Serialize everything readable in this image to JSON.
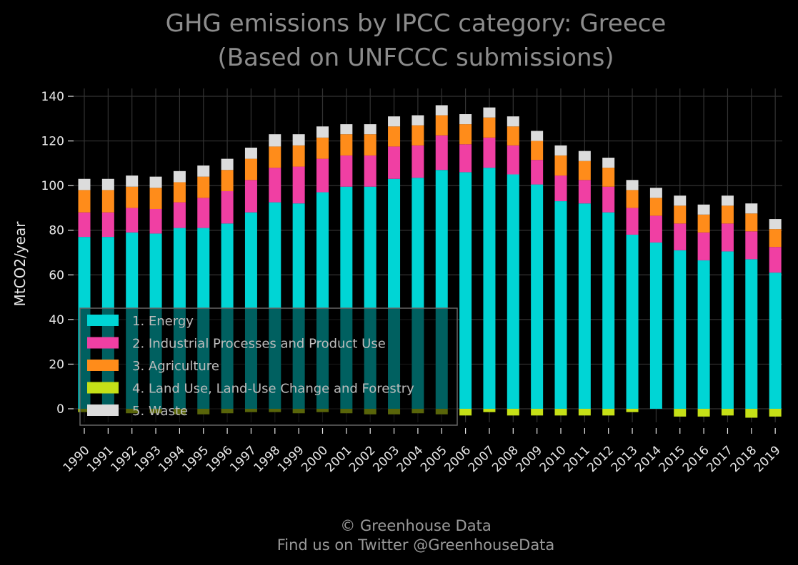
{
  "chart_data": {
    "type": "bar",
    "stacked": true,
    "title": "GHG emissions by IPCC category: Greece",
    "subtitle": "(Based on UNFCCC submissions)",
    "ylabel": "MtCO2/year",
    "xlabel": "",
    "ylim": [
      -5,
      143
    ],
    "yticks": [
      0,
      20,
      40,
      60,
      80,
      100,
      120,
      140
    ],
    "grid": true,
    "legend_position": "lower-left",
    "categories": [
      "1990",
      "1991",
      "1992",
      "1993",
      "1994",
      "1995",
      "1996",
      "1997",
      "1998",
      "1999",
      "2000",
      "2001",
      "2002",
      "2003",
      "2004",
      "2005",
      "2006",
      "2007",
      "2008",
      "2009",
      "2010",
      "2011",
      "2012",
      "2013",
      "2014",
      "2015",
      "2016",
      "2017",
      "2018",
      "2019"
    ],
    "series": [
      {
        "name": "1. Energy",
        "color": "#00d5d5",
        "values": [
          77,
          77,
          79,
          78.5,
          81,
          81,
          83,
          88,
          92.5,
          92,
          97,
          99.5,
          99.5,
          103,
          103.5,
          107,
          106,
          108,
          105,
          100.5,
          93,
          92,
          88,
          78,
          74.5,
          71,
          66.5,
          70.5,
          67,
          61
        ]
      },
      {
        "name": "2. Industrial Processes and Product Use",
        "color": "#f03fa3",
        "values": [
          11,
          11,
          11,
          11,
          11.5,
          13.5,
          14.5,
          14.5,
          15.5,
          16.5,
          15,
          14,
          14,
          14.5,
          14.5,
          15.5,
          12.5,
          13.5,
          13,
          11,
          11.5,
          10.5,
          11.5,
          12,
          12,
          12,
          12.5,
          12.5,
          12.5,
          11.5
        ]
      },
      {
        "name": "3. Agriculture",
        "color": "#ff8c1a",
        "values": [
          10,
          10,
          9.5,
          9.5,
          9,
          9.5,
          9.5,
          9.5,
          9.5,
          9.5,
          9.5,
          9.5,
          9.5,
          9,
          9,
          9,
          9,
          9,
          8.5,
          8.5,
          9,
          8.5,
          8.5,
          8,
          8,
          8,
          8,
          8,
          8,
          8
        ]
      },
      {
        "name": "4. Land Use, Land-Use Change and Forestry",
        "color": "#c5e017",
        "values": [
          -1.5,
          -1.5,
          -2,
          -2,
          -2.5,
          -2.5,
          -2,
          -1.5,
          -1.5,
          -2,
          -1.5,
          -2,
          -2.5,
          -2.5,
          -2,
          -2.5,
          -3,
          -1.5,
          -3,
          -3,
          -3,
          -3,
          -3,
          -1.5,
          0,
          -3.5,
          -3.5,
          -3,
          -4,
          -3.5
        ]
      },
      {
        "name": "5. Waste",
        "color": "#dcdcdc",
        "values": [
          5,
          5,
          5,
          5,
          5,
          5,
          5,
          5,
          5.5,
          5,
          5,
          4.5,
          4.5,
          4.5,
          4.5,
          4.5,
          4.5,
          4.5,
          4.5,
          4.5,
          4.5,
          4.5,
          4.5,
          4.5,
          4.5,
          4.5,
          4.5,
          4.5,
          4.5,
          4.5
        ]
      }
    ]
  },
  "credit": {
    "line1": "© Greenhouse Data",
    "line2": "Find us on Twitter @GreenhouseData"
  }
}
